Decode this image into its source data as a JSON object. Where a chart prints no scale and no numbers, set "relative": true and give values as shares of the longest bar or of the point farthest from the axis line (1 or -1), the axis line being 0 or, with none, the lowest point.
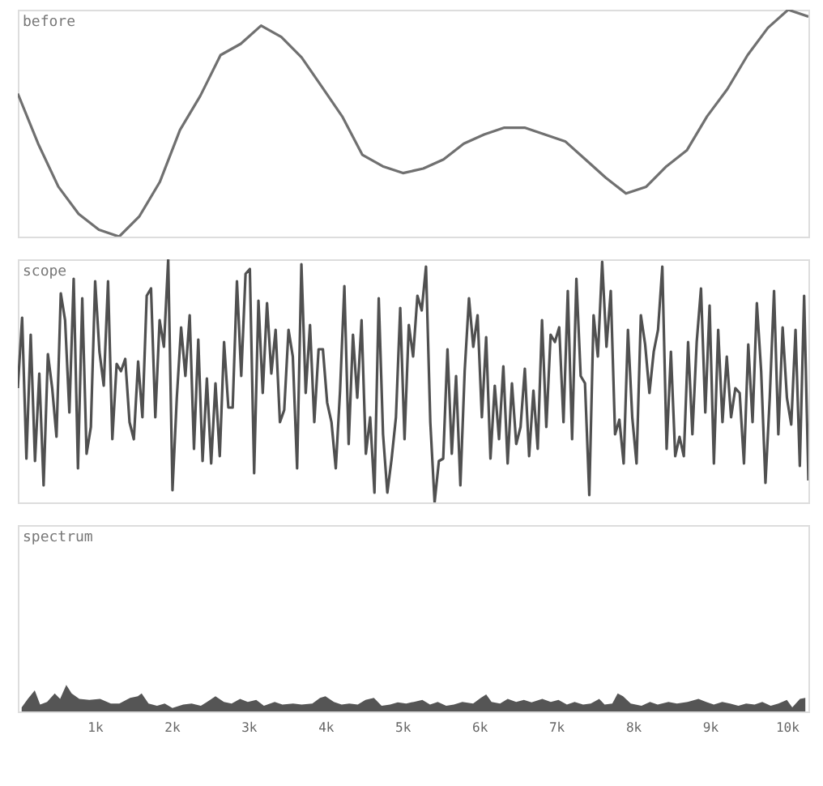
{
  "chart_data": [
    {
      "type": "line",
      "title": "before",
      "relative": true,
      "color": "#707070",
      "categories": [
        null,
        null,
        null,
        null,
        null,
        null,
        null,
        null,
        null,
        null,
        null,
        null,
        null,
        null,
        null,
        null,
        null,
        null,
        null,
        null,
        null,
        null,
        null,
        null,
        null,
        null,
        null,
        null,
        null,
        null,
        null,
        null,
        null,
        null,
        null,
        null,
        null,
        null,
        null,
        null
      ],
      "values": [
        0.63,
        0.41,
        0.22,
        0.1,
        0.03,
        0.0,
        0.09,
        0.24,
        0.47,
        0.62,
        0.8,
        0.85,
        0.93,
        0.88,
        0.79,
        0.66,
        0.53,
        0.36,
        0.31,
        0.28,
        0.3,
        0.34,
        0.41,
        0.45,
        0.48,
        0.48,
        0.45,
        0.42,
        0.34,
        0.26,
        0.19,
        0.22,
        0.31,
        0.38,
        0.53,
        0.65,
        0.8,
        0.92,
        1.0,
        0.97
      ]
    },
    {
      "type": "line",
      "title": "scope",
      "relative": true,
      "color": "#505050",
      "categories": [
        null,
        null,
        null,
        null,
        null,
        null,
        null,
        null,
        null,
        null,
        null,
        null,
        null,
        null,
        null,
        null,
        null,
        null,
        null,
        null,
        null,
        null,
        null,
        null,
        null,
        null,
        null,
        null,
        null,
        null,
        null,
        null,
        null,
        null,
        null,
        null,
        null,
        null,
        null,
        null,
        null,
        null,
        null,
        null,
        null,
        null,
        null,
        null,
        null,
        null,
        null,
        null,
        null,
        null,
        null,
        null,
        null,
        null,
        null,
        null,
        null,
        null,
        null,
        null,
        null,
        null,
        null,
        null,
        null,
        null,
        null,
        null,
        null,
        null,
        null,
        null,
        null,
        null,
        null,
        null,
        null,
        null,
        null,
        null,
        null,
        null,
        null,
        null,
        null,
        null,
        null,
        null,
        null,
        null,
        null,
        null,
        null,
        null,
        null,
        null,
        null,
        null,
        null,
        null,
        null,
        null,
        null,
        null,
        null,
        null,
        null,
        null,
        null,
        null,
        null,
        null,
        null,
        null,
        null,
        null,
        null,
        null,
        null,
        null,
        null,
        null,
        null,
        null,
        null,
        null,
        null,
        null,
        null,
        null,
        null,
        null,
        null,
        null,
        null,
        null,
        null,
        null,
        null,
        null,
        null,
        null,
        null,
        null,
        null,
        null,
        null,
        null,
        null,
        null,
        null,
        null,
        null,
        null,
        null,
        null,
        null,
        null,
        null,
        null,
        null,
        null,
        null,
        null,
        null,
        null,
        null,
        null,
        null,
        null,
        null,
        null,
        null,
        null,
        null,
        null,
        null,
        null,
        null,
        null,
        null
      ],
      "values": [
        0.47,
        0.76,
        0.18,
        0.69,
        0.17,
        0.53,
        0.07,
        0.61,
        0.47,
        0.27,
        0.86,
        0.75,
        0.37,
        0.92,
        0.14,
        0.84,
        0.2,
        0.31,
        0.91,
        0.62,
        0.48,
        0.91,
        0.26,
        0.57,
        0.54,
        0.59,
        0.33,
        0.26,
        0.58,
        0.35,
        0.85,
        0.88,
        0.35,
        0.75,
        0.64,
        1.0,
        0.05,
        0.43,
        0.72,
        0.52,
        0.77,
        0.22,
        0.67,
        0.17,
        0.51,
        0.16,
        0.49,
        0.19,
        0.66,
        0.39,
        0.39,
        0.91,
        0.52,
        0.94,
        0.96,
        0.12,
        0.83,
        0.45,
        0.82,
        0.53,
        0.71,
        0.33,
        0.38,
        0.71,
        0.6,
        0.14,
        0.98,
        0.45,
        0.73,
        0.33,
        0.63,
        0.63,
        0.41,
        0.33,
        0.14,
        0.46,
        0.89,
        0.24,
        0.69,
        0.43,
        0.75,
        0.2,
        0.35,
        0.04,
        0.84,
        0.28,
        0.04,
        0.18,
        0.35,
        0.8,
        0.26,
        0.73,
        0.6,
        0.85,
        0.79,
        0.97,
        0.33,
        0.0,
        0.17,
        0.18,
        0.63,
        0.2,
        0.52,
        0.07,
        0.54,
        0.84,
        0.64,
        0.77,
        0.35,
        0.68,
        0.18,
        0.48,
        0.26,
        0.56,
        0.16,
        0.49,
        0.24,
        0.31,
        0.55,
        0.19,
        0.46,
        0.22,
        0.75,
        0.31,
        0.69,
        0.66,
        0.72,
        0.33,
        0.87,
        0.26,
        0.92,
        0.52,
        0.49,
        0.03,
        0.77,
        0.6,
        0.99,
        0.64,
        0.87,
        0.28,
        0.34,
        0.16,
        0.71,
        0.35,
        0.16,
        0.77,
        0.65,
        0.45,
        0.62,
        0.71,
        0.97,
        0.22,
        0.62,
        0.19,
        0.27,
        0.19,
        0.66,
        0.28,
        0.66,
        0.88,
        0.37,
        0.81,
        0.16,
        0.71,
        0.33,
        0.6,
        0.35,
        0.47,
        0.45,
        0.16,
        0.65,
        0.33,
        0.82,
        0.54,
        0.08,
        0.43,
        0.87,
        0.28,
        0.72,
        0.43,
        0.32,
        0.71,
        0.15,
        0.85,
        0.09
      ]
    },
    {
      "type": "area",
      "title": "spectrum",
      "relative": true,
      "color": "#555555",
      "xlim": [
        0,
        10280
      ],
      "xticks": [
        {
          "value": 1000,
          "label": "1k"
        },
        {
          "value": 2000,
          "label": "2k"
        },
        {
          "value": 3000,
          "label": "3k"
        },
        {
          "value": 4000,
          "label": "4k"
        },
        {
          "value": 5000,
          "label": "5k"
        },
        {
          "value": 6000,
          "label": "6k"
        },
        {
          "value": 7000,
          "label": "7k"
        },
        {
          "value": 8000,
          "label": "8k"
        },
        {
          "value": 9000,
          "label": "9k"
        },
        {
          "value": 10000,
          "label": "10k"
        }
      ],
      "x": [
        50,
        130,
        220,
        290,
        380,
        480,
        550,
        630,
        700,
        800,
        930,
        1070,
        1210,
        1320,
        1460,
        1560,
        1610,
        1700,
        1810,
        1910,
        2010,
        2150,
        2260,
        2380,
        2500,
        2570,
        2680,
        2780,
        2890,
        2990,
        3100,
        3200,
        3340,
        3440,
        3580,
        3690,
        3830,
        3930,
        4000,
        4110,
        4210,
        4310,
        4420,
        4520,
        4630,
        4730,
        4840,
        4940,
        5050,
        5150,
        5260,
        5360,
        5460,
        5570,
        5670,
        5780,
        5920,
        6020,
        6090,
        6160,
        6270,
        6370,
        6480,
        6580,
        6680,
        6820,
        6930,
        7030,
        7140,
        7240,
        7350,
        7450,
        7560,
        7630,
        7730,
        7800,
        7870,
        7970,
        8110,
        8220,
        8320,
        8460,
        8570,
        8710,
        8850,
        8950,
        9050,
        9160,
        9260,
        9370,
        9470,
        9580,
        9680,
        9790,
        9890,
        10000,
        10070,
        10170,
        10240
      ],
      "values": [
        0.15,
        0.47,
        0.79,
        0.26,
        0.36,
        0.68,
        0.47,
        1.0,
        0.68,
        0.47,
        0.43,
        0.47,
        0.3,
        0.3,
        0.51,
        0.57,
        0.68,
        0.3,
        0.21,
        0.3,
        0.13,
        0.26,
        0.3,
        0.21,
        0.43,
        0.57,
        0.36,
        0.3,
        0.47,
        0.36,
        0.43,
        0.21,
        0.36,
        0.26,
        0.3,
        0.26,
        0.3,
        0.51,
        0.57,
        0.36,
        0.26,
        0.3,
        0.26,
        0.43,
        0.51,
        0.21,
        0.26,
        0.34,
        0.3,
        0.36,
        0.43,
        0.26,
        0.36,
        0.21,
        0.26,
        0.36,
        0.3,
        0.51,
        0.64,
        0.36,
        0.3,
        0.47,
        0.36,
        0.43,
        0.34,
        0.47,
        0.36,
        0.43,
        0.26,
        0.36,
        0.26,
        0.3,
        0.47,
        0.26,
        0.3,
        0.68,
        0.57,
        0.3,
        0.21,
        0.36,
        0.26,
        0.36,
        0.3,
        0.36,
        0.47,
        0.36,
        0.26,
        0.36,
        0.3,
        0.21,
        0.3,
        0.26,
        0.36,
        0.21,
        0.3,
        0.43,
        0.15,
        0.47,
        0.51
      ]
    }
  ]
}
